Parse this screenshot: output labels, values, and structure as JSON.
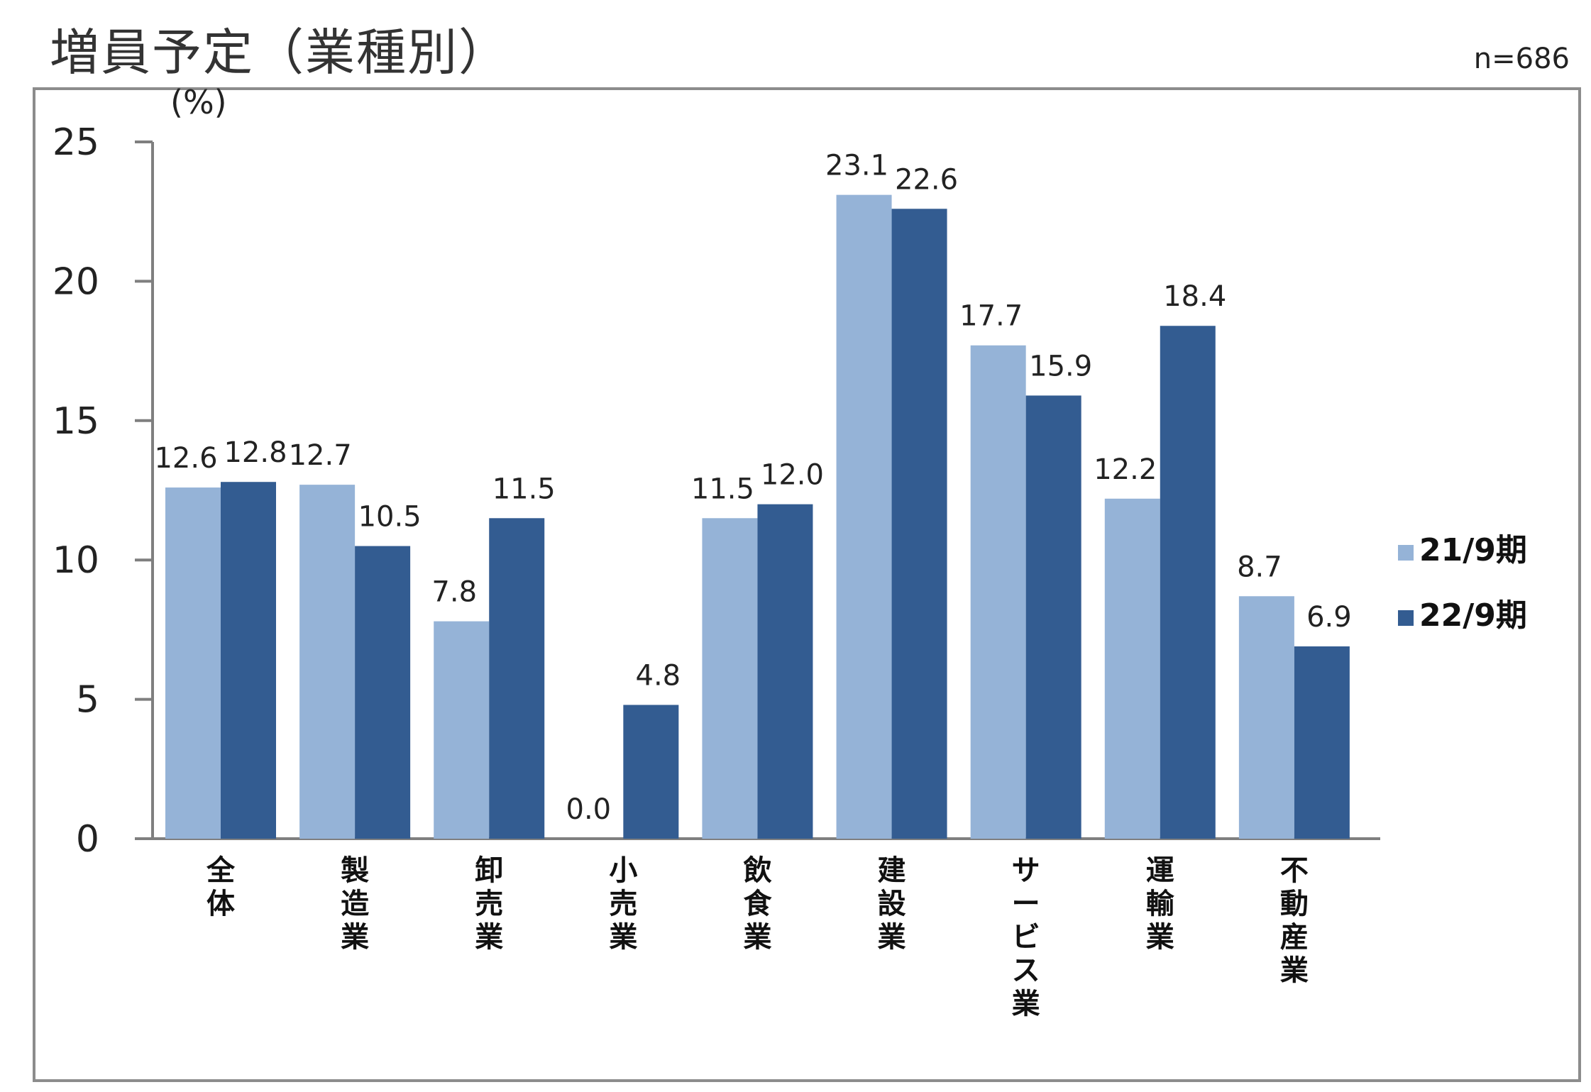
{
  "chart_data": {
    "type": "bar",
    "title": "増員予定（業種別）",
    "sample_size": "n=686",
    "ylabel": "(%)",
    "ylim": [
      0,
      25
    ],
    "yticks": [
      0,
      5,
      10,
      15,
      20,
      25
    ],
    "categories": [
      "全体",
      "製造業",
      "卸売業",
      "小売業",
      "飲食業",
      "建設業",
      "サービス業",
      "運輸業",
      "不動産業"
    ],
    "series": [
      {
        "name": "21/9期",
        "color": "#95b3d7",
        "values": [
          12.6,
          12.7,
          7.8,
          0.0,
          11.5,
          23.1,
          17.7,
          12.2,
          8.7
        ],
        "labels": [
          "12.6",
          "12.7",
          "7.8",
          "0.0",
          "11.5",
          "23.1",
          "17.7",
          "12.2",
          "8.7"
        ]
      },
      {
        "name": "22/9期",
        "color": "#335c91",
        "values": [
          12.8,
          10.5,
          11.5,
          4.8,
          12.0,
          22.6,
          15.9,
          18.4,
          6.9
        ],
        "labels": [
          "12.8",
          "10.5",
          "11.5",
          "4.8",
          "12.0",
          "22.6",
          "15.9",
          "18.4",
          "6.9"
        ]
      }
    ],
    "legend": "right"
  }
}
